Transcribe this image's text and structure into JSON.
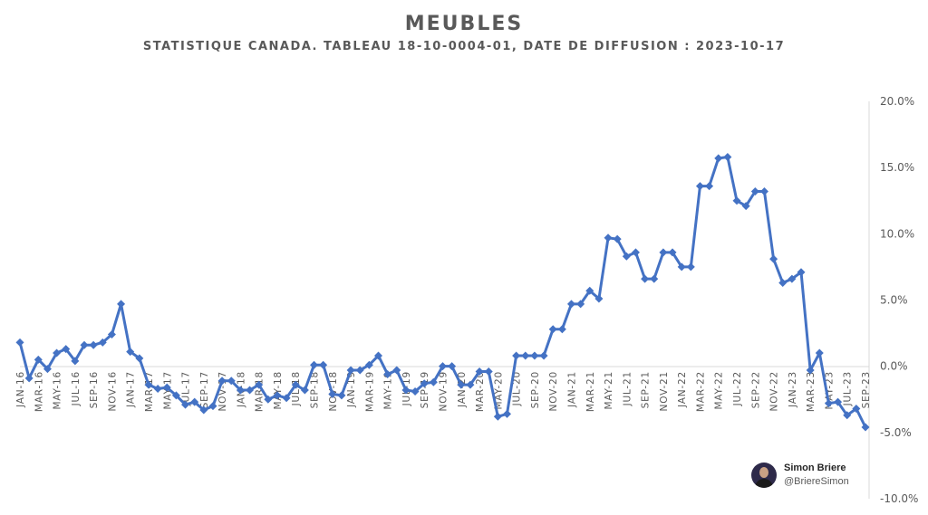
{
  "chart_data": {
    "type": "line",
    "title": "MEUBLES",
    "subtitle": "STATISTIQUE CANADA.  TABLEAU 18-10-0004-01, DATE DE DIFFUSION : 2023-10-17",
    "xlabel": "",
    "ylabel": "",
    "ylim": [
      -10,
      20
    ],
    "y_ticks": [
      "20.0%",
      "15.0%",
      "10.0%",
      "5.0%",
      "0.0%",
      "-5.0%",
      "-10.0%"
    ],
    "x_tick_labels": [
      "JAN-16",
      "MAR-16",
      "MAY-16",
      "JUL-16",
      "SEP-16",
      "NOV-16",
      "JAN-17",
      "MAR-17",
      "MAY-17",
      "JUL-17",
      "SEP-17",
      "NOV-17",
      "JAN-18",
      "MAR-18",
      "MAY-18",
      "JUL-18",
      "SEP-18",
      "NOV-18",
      "JAN-19",
      "MAR-19",
      "MAY-19",
      "JUL-19",
      "SEP-19",
      "NOV-19",
      "JAN-20",
      "MAR-20",
      "MAY-20",
      "JUL-20",
      "SEP-20",
      "NOV-20",
      "JAN-21",
      "MAR-21",
      "MAY-21",
      "JUL-21",
      "SEP-21",
      "NOV-21",
      "JAN-22",
      "MAR-22",
      "MAY-22",
      "JUL-22",
      "SEP-22",
      "NOV-22",
      "JAN-23",
      "MAR-23",
      "MAY-23",
      "JUL-23",
      "SEP-23"
    ],
    "legend": "none",
    "grid": false,
    "series_color": "#4472C4",
    "series": [
      {
        "values": [
          1.8,
          -0.9,
          0.5,
          -0.2,
          1.0,
          1.3,
          0.4,
          1.6,
          1.6,
          1.8,
          2.4,
          4.7,
          1.1,
          0.6,
          -1.4,
          -1.7,
          -1.6,
          -2.2,
          -2.9,
          -2.7,
          -3.3,
          -3.0,
          -1.1,
          -1.1,
          -1.8,
          -1.8,
          -1.4,
          -2.5,
          -2.2,
          -2.4,
          -1.4,
          -1.8,
          0.1,
          0.1,
          -2.1,
          -2.2,
          -0.3,
          -0.3,
          0.1,
          0.8,
          -0.6,
          -0.3,
          -1.8,
          -1.9,
          -1.3,
          -1.2,
          0.0,
          0.0,
          -1.4,
          -1.4,
          -0.4,
          -0.4,
          -3.8,
          -3.6,
          0.8,
          0.8,
          0.8,
          0.8,
          2.8,
          2.8,
          4.7,
          4.7,
          5.7,
          5.1,
          9.7,
          9.6,
          8.3,
          8.6,
          6.6,
          6.6,
          8.6,
          8.6,
          7.5,
          7.5,
          13.6,
          13.6,
          15.7,
          15.8,
          12.5,
          12.1,
          13.2,
          13.2,
          8.1,
          6.3,
          6.6,
          7.1,
          -0.3,
          1.0,
          -2.8,
          -2.7,
          -3.7,
          -3.2,
          -4.6
        ]
      }
    ]
  },
  "credit": {
    "name": "Simon Briere",
    "handle": "@BriereSimon"
  }
}
